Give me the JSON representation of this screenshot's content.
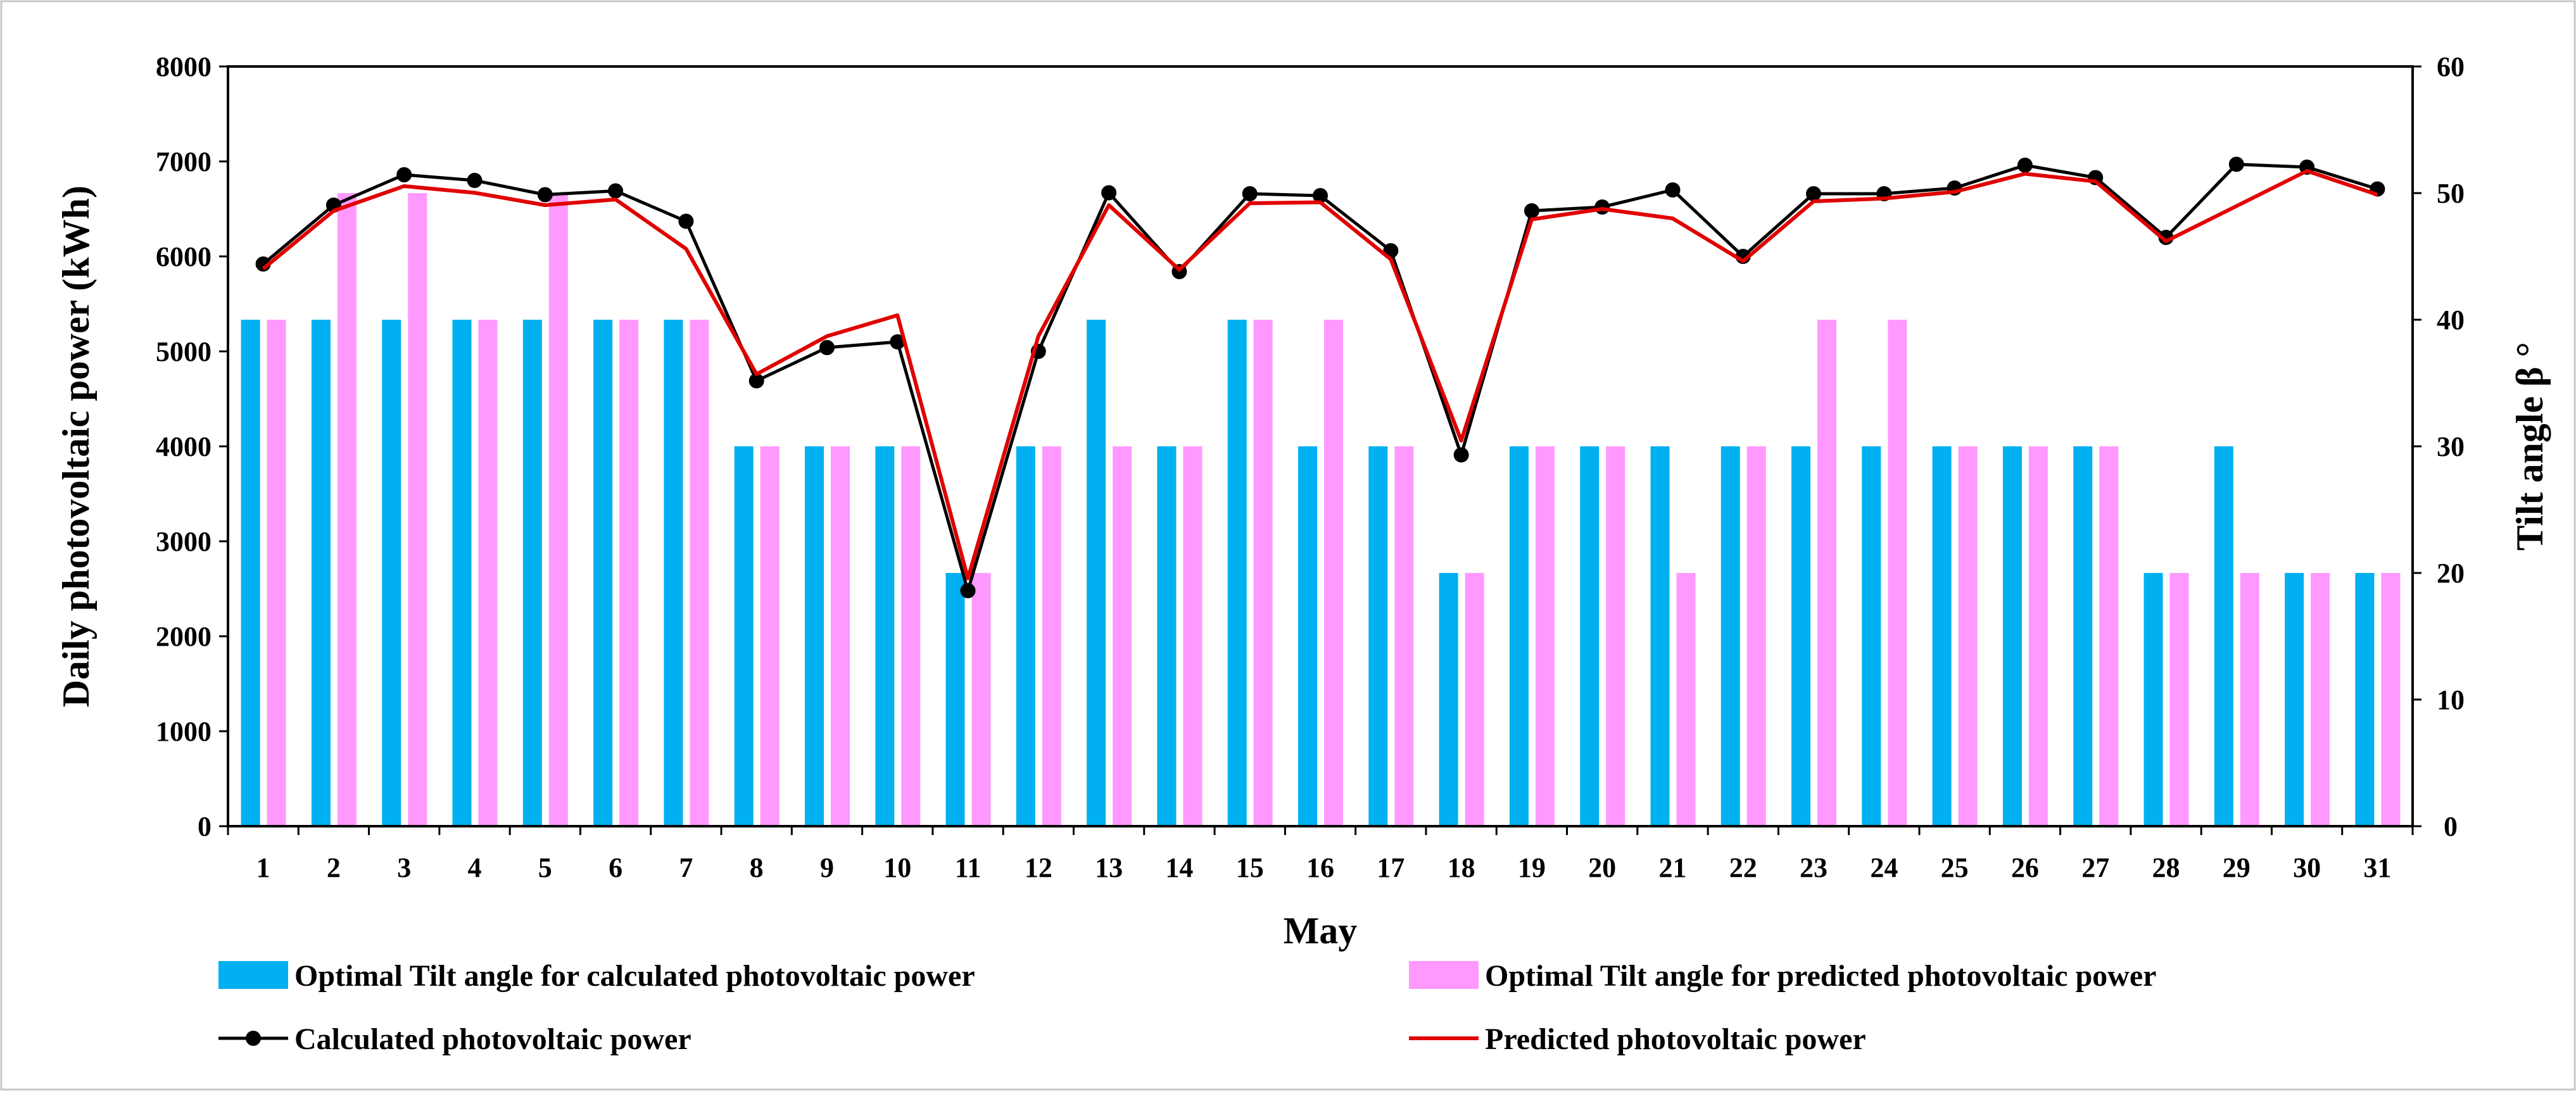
{
  "chart_data": {
    "type": "bar+line",
    "xlabel": "May",
    "ylabel_left": "Daily photovoltaic power (kWh)",
    "ylabel_right": "Tilt angle  β °",
    "ylim_left": [
      0,
      8000
    ],
    "ylim_right": [
      0,
      60
    ],
    "yticks_left": [
      "0",
      "1000",
      "2000",
      "3000",
      "4000",
      "5000",
      "6000",
      "7000",
      "8000"
    ],
    "yticks_right": [
      "0",
      "10",
      "20",
      "30",
      "40",
      "50",
      "60"
    ],
    "categories": [
      "1",
      "2",
      "3",
      "4",
      "5",
      "6",
      "7",
      "8",
      "9",
      "10",
      "11",
      "12",
      "13",
      "14",
      "15",
      "16",
      "17",
      "18",
      "19",
      "20",
      "21",
      "22",
      "23",
      "24",
      "25",
      "26",
      "27",
      "28",
      "29",
      "30",
      "31"
    ],
    "bar_series": [
      {
        "name": "Optimal Tilt angle for calculated photovoltaic power",
        "color": "#00b0f0",
        "axis": "right",
        "values": [
          40,
          40,
          40,
          40,
          40,
          40,
          40,
          30,
          30,
          30,
          20,
          30,
          40,
          30,
          40,
          30,
          30,
          20,
          30,
          30,
          30,
          30,
          30,
          30,
          30,
          30,
          30,
          20,
          30,
          20,
          20
        ]
      },
      {
        "name": "Optimal Tilt angle for predicted photovoltaic power",
        "color": "#ff99ff",
        "axis": "right",
        "values": [
          40,
          50,
          50,
          40,
          50,
          40,
          40,
          30,
          30,
          30,
          20,
          30,
          30,
          30,
          40,
          40,
          30,
          20,
          30,
          30,
          20,
          30,
          40,
          40,
          30,
          30,
          30,
          20,
          20,
          20,
          20
        ]
      }
    ],
    "line_series": [
      {
        "name": "Calculated photovoltaic power",
        "color": "#000000",
        "marker": "circle",
        "axis": "left",
        "values": [
          5920,
          6540,
          6860,
          6800,
          6650,
          6690,
          6370,
          4690,
          5040,
          5100,
          2480,
          5000,
          6670,
          5840,
          6660,
          6640,
          6060,
          3910,
          6480,
          6520,
          6700,
          6000,
          6660,
          6660,
          6720,
          6960,
          6830,
          6200,
          6970,
          6940,
          6710
        ]
      },
      {
        "name": "Predicted photovoltaic power",
        "color": "#e00000",
        "marker": "none",
        "axis": "left",
        "values": [
          5870,
          6480,
          6740,
          6670,
          6540,
          6600,
          6080,
          4760,
          5160,
          5380,
          2610,
          5160,
          6540,
          5860,
          6560,
          6570,
          5970,
          4060,
          6390,
          6500,
          6400,
          5950,
          6580,
          6610,
          6680,
          6870,
          6790,
          6160,
          6530,
          6900,
          6650
        ]
      }
    ],
    "legend": [
      "Optimal Tilt angle for calculated photovoltaic power",
      "Optimal Tilt angle for predicted photovoltaic power",
      "Calculated photovoltaic power",
      "Predicted photovoltaic power"
    ],
    "legend_position": "bottom"
  }
}
